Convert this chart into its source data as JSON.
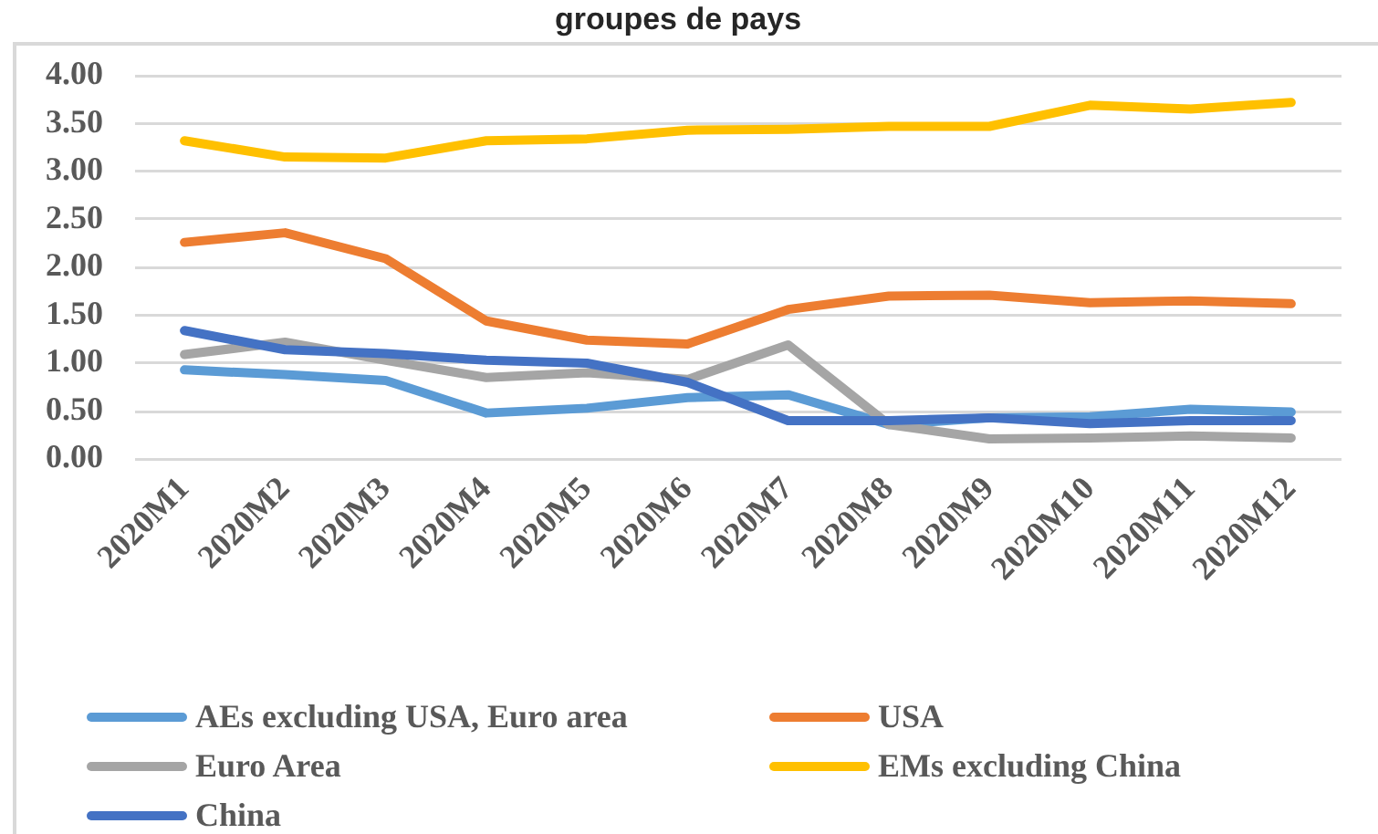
{
  "chart_data": {
    "type": "line",
    "title": "groupes de pays",
    "categories": [
      "2020M1",
      "2020M2",
      "2020M3",
      "2020M4",
      "2020M5",
      "2020M6",
      "2020M7",
      "2020M8",
      "2020M9",
      "2020M10",
      "2020M11",
      "2020M12"
    ],
    "series": [
      {
        "name": "AEs excluding USA, Euro area",
        "color": "#5b9bd5",
        "values": [
          0.93,
          0.88,
          0.82,
          0.48,
          0.53,
          0.64,
          0.67,
          0.36,
          0.43,
          0.44,
          0.52,
          0.49
        ]
      },
      {
        "name": "USA",
        "color": "#ed7d31",
        "values": [
          2.26,
          2.36,
          2.09,
          1.44,
          1.24,
          1.2,
          1.56,
          1.7,
          1.71,
          1.63,
          1.65,
          1.62
        ]
      },
      {
        "name": "Euro Area",
        "color": "#a5a5a5",
        "values": [
          1.09,
          1.22,
          1.03,
          0.85,
          0.9,
          0.83,
          1.19,
          0.36,
          0.21,
          0.22,
          0.24,
          0.22
        ]
      },
      {
        "name": "EMs excluding China",
        "color": "#ffc000",
        "values": [
          3.32,
          3.15,
          3.14,
          3.32,
          3.34,
          3.43,
          3.44,
          3.47,
          3.47,
          3.69,
          3.65,
          3.72
        ]
      },
      {
        "name": "China",
        "color": "#4472c4",
        "values": [
          1.34,
          1.14,
          1.1,
          1.03,
          1.0,
          0.8,
          0.4,
          0.4,
          0.43,
          0.37,
          0.4,
          0.4
        ]
      }
    ],
    "ylim": [
      0,
      4
    ],
    "yticks": [
      {
        "value": 0,
        "label": "0.00"
      },
      {
        "value": 0.5,
        "label": "0.50"
      },
      {
        "value": 1,
        "label": "1.00"
      },
      {
        "value": 1.5,
        "label": "1.50"
      },
      {
        "value": 2,
        "label": "2.00"
      },
      {
        "value": 2.5,
        "label": "2.50"
      },
      {
        "value": 3,
        "label": "3.00"
      },
      {
        "value": 3.5,
        "label": "3.50"
      },
      {
        "value": 4,
        "label": "4.00"
      }
    ],
    "grid": "y",
    "legend": "bottom"
  }
}
